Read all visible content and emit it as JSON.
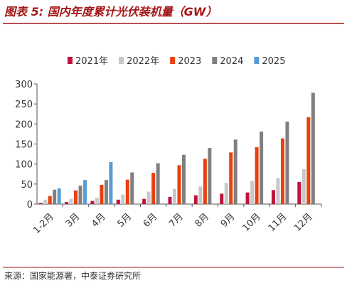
{
  "chart_data": {
    "type": "bar",
    "title": "图表 5:  国内年度累计光伏装机量（GW）",
    "source": "来源：国家能源署，中泰证券研究所",
    "categories": [
      "1-2月",
      "3月",
      "4月",
      "5月",
      "6月",
      "7月",
      "8月",
      "9月",
      "10月",
      "11月",
      "12月"
    ],
    "series": [
      {
        "name": "2021年",
        "color": "#c0143c",
        "values": [
          3,
          5,
          8,
          11,
          13,
          18,
          22,
          26,
          29,
          35,
          55
        ]
      },
      {
        "name": "2022年",
        "color": "#c8c8c8",
        "values": [
          11,
          13,
          16,
          24,
          31,
          38,
          44,
          53,
          58,
          65,
          87
        ]
      },
      {
        "name": "2023",
        "color": "#e8410f",
        "values": [
          20,
          34,
          48,
          61,
          78,
          97,
          113,
          129,
          142,
          164,
          217
        ]
      },
      {
        "name": "2024",
        "color": "#808080",
        "values": [
          36,
          46,
          60,
          79,
          102,
          123,
          140,
          161,
          181,
          206,
          278
        ]
      },
      {
        "name": "2025",
        "color": "#5b9bd5",
        "values": [
          39,
          60,
          105,
          null,
          null,
          null,
          null,
          null,
          null,
          null,
          null
        ]
      }
    ],
    "ylim": [
      0,
      300
    ],
    "yticks": [
      0,
      50,
      100,
      150,
      200,
      250,
      300
    ]
  }
}
